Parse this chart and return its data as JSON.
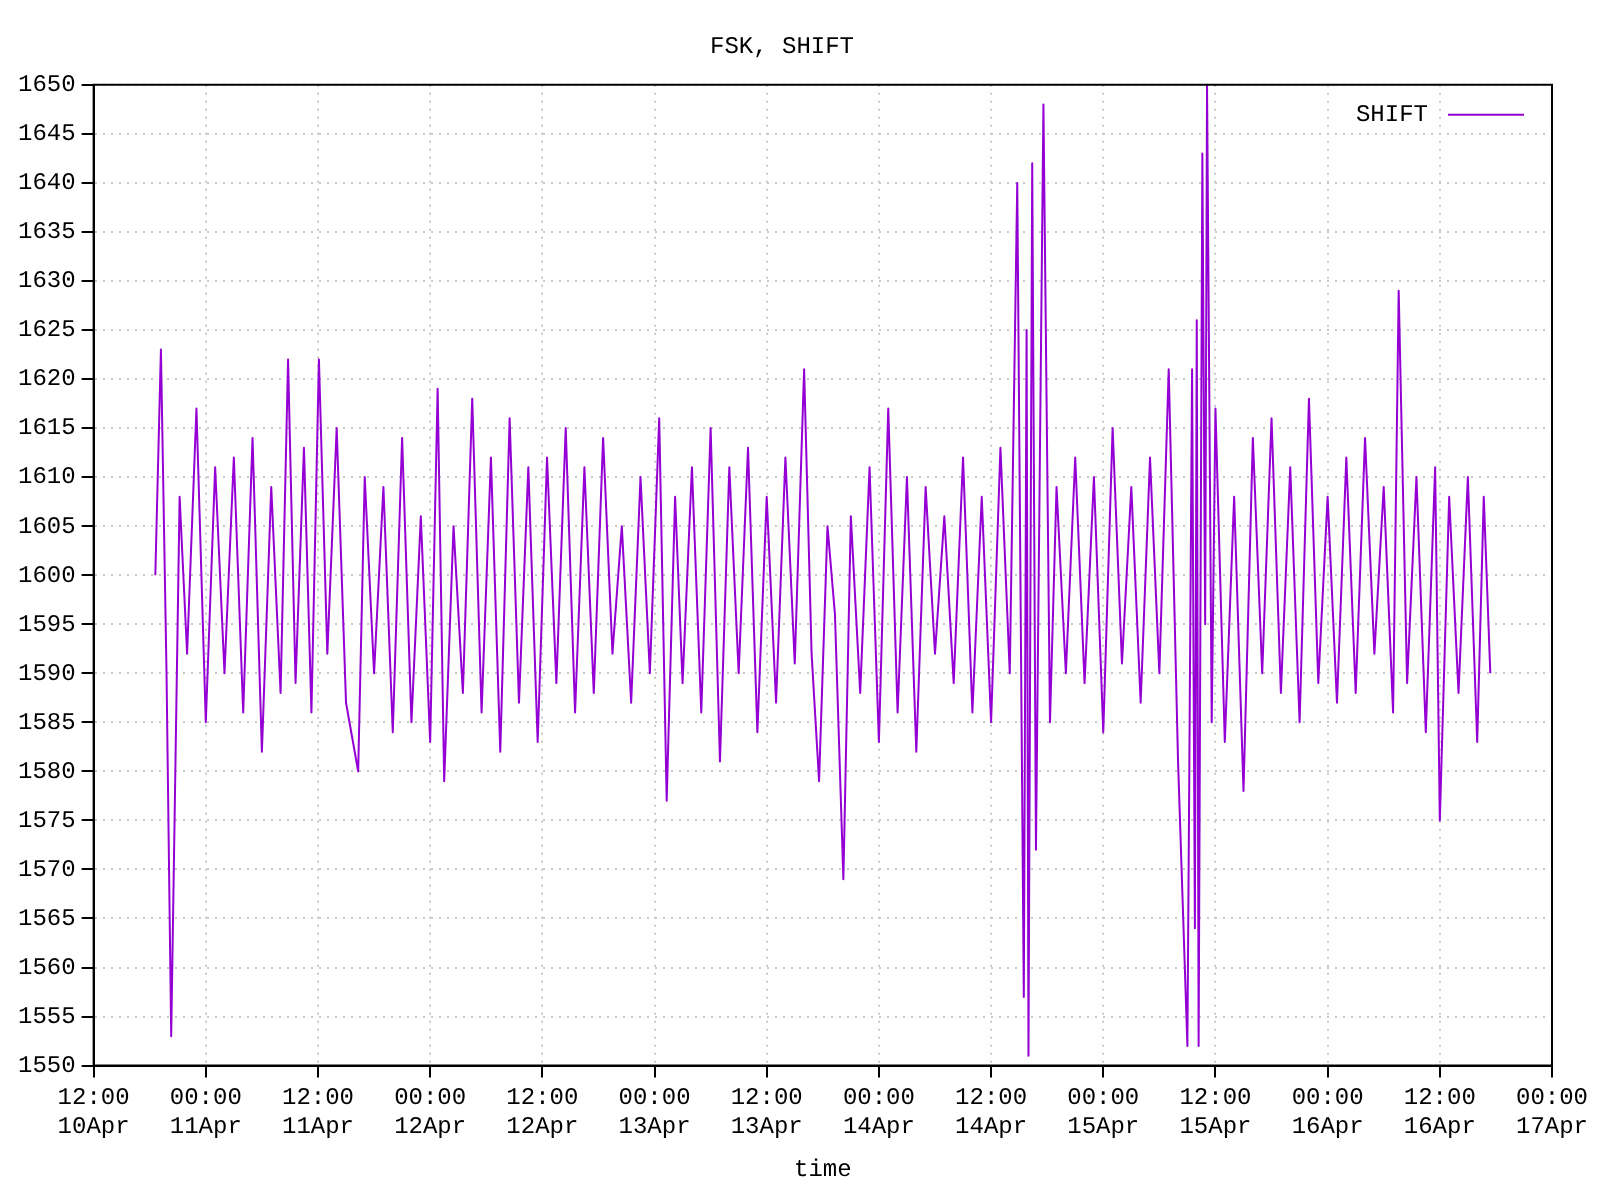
{
  "chart_data": {
    "type": "line",
    "title": "FSK, SHIFT",
    "xlabel": "time",
    "x": [
      "--04-10T18:36",
      "--04-10T19:12",
      "--04-10T19:48",
      "--04-10T20:18",
      "--04-10T21:12",
      "--04-10T22:00",
      "--04-10T23:00",
      "--04-11T00:00",
      "--04-11T01:00",
      "--04-11T02:00",
      "--04-11T03:00",
      "--04-11T04:00",
      "--04-11T05:00",
      "--04-11T06:00",
      "--04-11T07:00",
      "--04-11T08:00",
      "--04-11T08:48",
      "--04-11T09:36",
      "--04-11T10:30",
      "--04-11T11:18",
      "--04-11T12:06",
      "--04-11T13:00",
      "--04-11T14:00",
      "--04-11T15:00",
      "--04-11T16:18",
      "--04-11T17:00",
      "--04-11T18:00",
      "--04-11T19:00",
      "--04-11T20:00",
      "--04-11T21:00",
      "--04-11T22:00",
      "--04-11T23:00",
      "--04-12T00:00",
      "--04-12T00:48",
      "--04-12T01:30",
      "--04-12T02:30",
      "--04-12T03:30",
      "--04-12T04:30",
      "--04-12T05:30",
      "--04-12T06:30",
      "--04-12T07:30",
      "--04-12T08:30",
      "--04-12T09:30",
      "--04-12T10:30",
      "--04-12T11:30",
      "--04-12T12:30",
      "--04-12T13:30",
      "--04-12T14:30",
      "--04-12T15:30",
      "--04-12T16:30",
      "--04-12T17:30",
      "--04-12T18:30",
      "--04-12T19:30",
      "--04-12T20:30",
      "--04-12T21:30",
      "--04-12T22:30",
      "--04-12T23:30",
      "--04-13T00:30",
      "--04-13T01:18",
      "--04-13T02:12",
      "--04-13T03:00",
      "--04-13T04:00",
      "--04-13T05:00",
      "--04-13T06:00",
      "--04-13T07:00",
      "--04-13T08:00",
      "--04-13T09:00",
      "--04-13T10:00",
      "--04-13T11:00",
      "--04-13T12:00",
      "--04-13T13:00",
      "--04-13T14:00",
      "--04-13T15:00",
      "--04-13T16:00",
      "--04-13T16:48",
      "--04-13T17:36",
      "--04-13T18:30",
      "--04-13T19:18",
      "--04-13T20:12",
      "--04-13T21:00",
      "--04-13T22:00",
      "--04-13T23:00",
      "--04-14T00:00",
      "--04-14T01:00",
      "--04-14T02:00",
      "--04-14T03:00",
      "--04-14T04:00",
      "--04-14T05:00",
      "--04-14T06:00",
      "--04-14T07:00",
      "--04-14T08:00",
      "--04-14T09:00",
      "--04-14T10:00",
      "--04-14T11:00",
      "--04-14T12:00",
      "--04-14T13:00",
      "--04-14T14:00",
      "--04-14T14:48",
      "--04-14T15:30",
      "--04-14T15:48",
      "--04-14T16:00",
      "--04-14T16:24",
      "--04-14T16:48",
      "--04-14T17:36",
      "--04-14T18:18",
      "--04-14T19:00",
      "--04-14T20:00",
      "--04-14T21:00",
      "--04-14T22:00",
      "--04-14T23:00",
      "--04-15T00:00",
      "--04-15T01:00",
      "--04-15T02:00",
      "--04-15T03:00",
      "--04-15T04:00",
      "--04-15T05:00",
      "--04-15T06:00",
      "--04-15T07:00",
      "--04-15T08:00",
      "--04-15T09:00",
      "--04-15T09:30",
      "--04-15T09:48",
      "--04-15T10:00",
      "--04-15T10:12",
      "--04-15T10:36",
      "--04-15T10:54",
      "--04-15T11:06",
      "--04-15T11:36",
      "--04-15T12:00",
      "--04-15T13:00",
      "--04-15T14:00",
      "--04-15T15:00",
      "--04-15T16:00",
      "--04-15T17:00",
      "--04-15T18:00",
      "--04-15T19:00",
      "--04-15T20:00",
      "--04-15T21:00",
      "--04-15T22:00",
      "--04-15T23:00",
      "--04-16T00:00",
      "--04-16T01:00",
      "--04-16T02:00",
      "--04-16T03:00",
      "--04-16T04:00",
      "--04-16T05:00",
      "--04-16T06:00",
      "--04-16T07:00",
      "--04-16T07:36",
      "--04-16T08:30",
      "--04-16T09:30",
      "--04-16T10:30",
      "--04-16T11:30",
      "--04-16T12:00",
      "--04-16T13:00",
      "--04-16T14:00",
      "--04-16T15:00",
      "--04-16T16:00",
      "--04-16T16:42",
      "--04-16T17:24"
    ],
    "series": [
      {
        "name": "SHIFT",
        "color": "#9400d3",
        "values": [
          1600,
          1623,
          1590,
          1553,
          1608,
          1592,
          1617,
          1585,
          1611,
          1590,
          1612,
          1586,
          1614,
          1582,
          1609,
          1588,
          1622,
          1589,
          1613,
          1586,
          1622,
          1592,
          1615,
          1587,
          1580,
          1610,
          1590,
          1609,
          1584,
          1614,
          1585,
          1606,
          1583,
          1619,
          1579,
          1605,
          1588,
          1618,
          1586,
          1612,
          1582,
          1616,
          1587,
          1611,
          1583,
          1612,
          1589,
          1615,
          1586,
          1611,
          1588,
          1614,
          1592,
          1605,
          1587,
          1610,
          1590,
          1616,
          1577,
          1608,
          1589,
          1611,
          1586,
          1615,
          1581,
          1611,
          1590,
          1613,
          1584,
          1608,
          1587,
          1612,
          1591,
          1621,
          1592,
          1579,
          1605,
          1596,
          1569,
          1606,
          1588,
          1611,
          1583,
          1617,
          1586,
          1610,
          1582,
          1609,
          1592,
          1606,
          1589,
          1612,
          1586,
          1608,
          1585,
          1613,
          1590,
          1640,
          1557,
          1625,
          1551,
          1642,
          1572,
          1648,
          1585,
          1609,
          1590,
          1612,
          1589,
          1610,
          1584,
          1615,
          1591,
          1609,
          1587,
          1612,
          1590,
          1621,
          1581,
          1552,
          1621,
          1564,
          1626,
          1552,
          1643,
          1595,
          1650,
          1585,
          1617,
          1583,
          1608,
          1578,
          1614,
          1590,
          1616,
          1588,
          1611,
          1585,
          1618,
          1589,
          1608,
          1587,
          1612,
          1588,
          1614,
          1592,
          1609,
          1586,
          1629,
          1589,
          1610,
          1584,
          1611,
          1575,
          1608,
          1588,
          1610,
          1583,
          1608,
          1590
        ]
      }
    ],
    "xlim": [
      "--04-10T12:00",
      "--04-17T00:00"
    ],
    "xticks": [
      {
        "value": "--04-10T12:00",
        "label": "12:00\n10Apr"
      },
      {
        "value": "--04-11T00:00",
        "label": "00:00\n11Apr"
      },
      {
        "value": "--04-11T12:00",
        "label": "12:00\n11Apr"
      },
      {
        "value": "--04-12T00:00",
        "label": "00:00\n12Apr"
      },
      {
        "value": "--04-12T12:00",
        "label": "12:00\n12Apr"
      },
      {
        "value": "--04-13T00:00",
        "label": "00:00\n13Apr"
      },
      {
        "value": "--04-13T12:00",
        "label": "12:00\n13Apr"
      },
      {
        "value": "--04-14T00:00",
        "label": "00:00\n14Apr"
      },
      {
        "value": "--04-14T12:00",
        "label": "12:00\n14Apr"
      },
      {
        "value": "--04-15T00:00",
        "label": "00:00\n15Apr"
      },
      {
        "value": "--04-15T12:00",
        "label": "12:00\n15Apr"
      },
      {
        "value": "--04-16T00:00",
        "label": "00:00\n16Apr"
      },
      {
        "value": "--04-16T12:00",
        "label": "12:00\n16Apr"
      },
      {
        "value": "--04-17T00:00",
        "label": "00:00\n17Apr"
      }
    ],
    "ylim": [
      1550,
      1650
    ],
    "yticks": [
      1550,
      1555,
      1560,
      1565,
      1570,
      1575,
      1580,
      1585,
      1590,
      1595,
      1600,
      1605,
      1610,
      1615,
      1620,
      1625,
      1630,
      1635,
      1640,
      1645,
      1650
    ],
    "grid": true,
    "legend": "top right",
    "marker": "none",
    "line_style": "solid"
  }
}
